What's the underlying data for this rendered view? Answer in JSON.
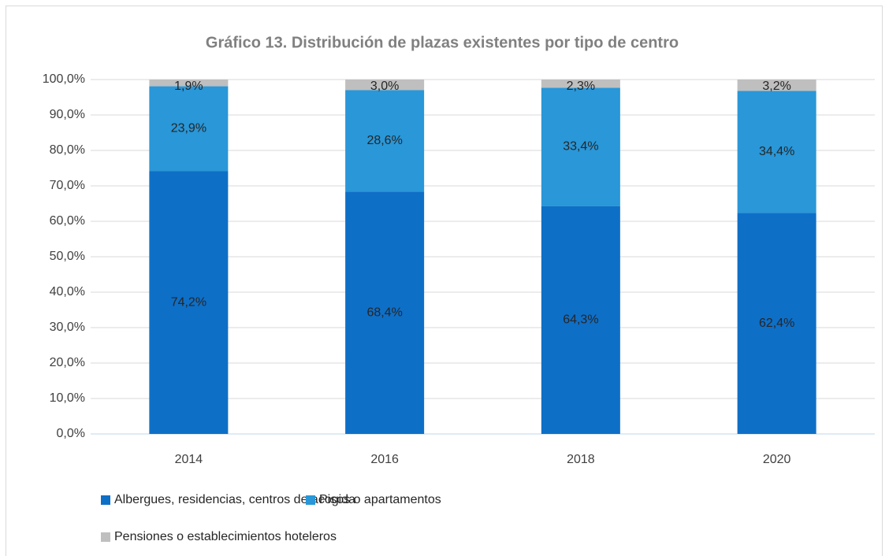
{
  "chart_data": {
    "type": "stacked_bar",
    "title": "Gráfico 13. Distribución de plazas existentes por tipo de centro",
    "categories": [
      "2014",
      "2016",
      "2018",
      "2020"
    ],
    "series": [
      {
        "name": "Albergues, residencias, centros de acogida",
        "color": "#0e6fc7",
        "values": [
          74.2,
          68.4,
          64.3,
          62.4
        ],
        "value_labels": [
          "74,2%",
          "68,4%",
          "64,3%",
          "62,4%"
        ]
      },
      {
        "name": "Pisos o apartamentos",
        "color": "#2997d8",
        "values": [
          23.9,
          28.6,
          33.4,
          34.4
        ],
        "value_labels": [
          "23,9%",
          "28,6%",
          "33,4%",
          "34,4%"
        ]
      },
      {
        "name": "Pensiones o establecimientos hoteleros",
        "color": "#bfbfbf",
        "values": [
          1.9,
          3.0,
          2.3,
          3.2
        ],
        "value_labels": [
          "1,9%",
          "3,0%",
          "2,3%",
          "3,2%"
        ]
      }
    ],
    "ylim": [
      0,
      100
    ],
    "yticks": [
      {
        "value": 0,
        "label": "0,0%"
      },
      {
        "value": 10,
        "label": "10,0%"
      },
      {
        "value": 20,
        "label": "20,0%"
      },
      {
        "value": 30,
        "label": "30,0%"
      },
      {
        "value": 40,
        "label": "40,0%"
      },
      {
        "value": 50,
        "label": "50,0%"
      },
      {
        "value": 60,
        "label": "60,0%"
      },
      {
        "value": 70,
        "label": "70,0%"
      },
      {
        "value": 80,
        "label": "80,0%"
      },
      {
        "value": 90,
        "label": "90,0%"
      },
      {
        "value": 100,
        "label": "100,0%"
      }
    ],
    "grid": true
  }
}
